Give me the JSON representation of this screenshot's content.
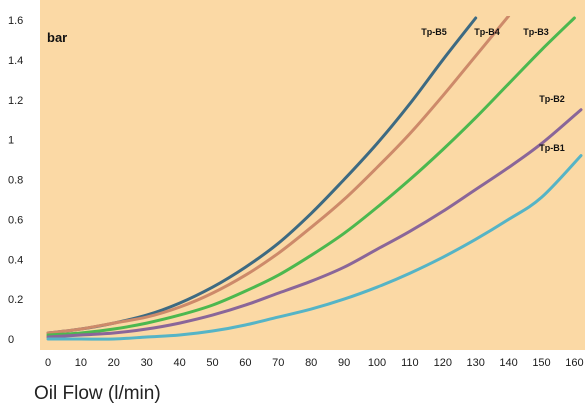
{
  "chart_data": {
    "type": "line",
    "unit_label": "bar",
    "xlabel": "Oil Flow (l/min)",
    "ylabel": "",
    "xlim": [
      0,
      160
    ],
    "ylim": [
      0,
      1.6
    ],
    "xticks": [
      "0",
      "10",
      "20",
      "30",
      "40",
      "50",
      "60",
      "70",
      "80",
      "90",
      "100",
      "110",
      "120",
      "130",
      "140",
      "150",
      "160"
    ],
    "yticks": [
      "0",
      "0.2",
      "0.4",
      "0.6",
      "0.8",
      "1",
      "1.2",
      "1.4",
      "1.6"
    ],
    "background_color": "#fbd9a5",
    "series": [
      {
        "name": "Tp-B5",
        "color": "#3d6a82",
        "x": [
          0,
          10,
          20,
          30,
          40,
          50,
          60,
          70,
          80,
          90,
          100,
          110,
          120,
          130
        ],
        "y": [
          0.03,
          0.05,
          0.08,
          0.12,
          0.18,
          0.26,
          0.36,
          0.48,
          0.63,
          0.8,
          0.98,
          1.18,
          1.4,
          1.61
        ]
      },
      {
        "name": "Tp-B4",
        "color": "#cd8a6a",
        "x": [
          0,
          10,
          20,
          30,
          40,
          50,
          60,
          70,
          80,
          90,
          100,
          110,
          120,
          130,
          140
        ],
        "y": [
          0.03,
          0.05,
          0.08,
          0.11,
          0.16,
          0.23,
          0.32,
          0.43,
          0.56,
          0.7,
          0.86,
          1.03,
          1.22,
          1.42,
          1.62
        ]
      },
      {
        "name": "Tp-B3",
        "color": "#4cb84f",
        "x": [
          0,
          10,
          20,
          30,
          40,
          50,
          60,
          70,
          80,
          90,
          100,
          110,
          120,
          130,
          140,
          150,
          160
        ],
        "y": [
          0.02,
          0.03,
          0.05,
          0.08,
          0.12,
          0.17,
          0.24,
          0.32,
          0.42,
          0.53,
          0.66,
          0.8,
          0.95,
          1.11,
          1.28,
          1.45,
          1.61
        ]
      },
      {
        "name": "Tp-B2",
        "color": "#8a6699",
        "x": [
          0,
          10,
          20,
          30,
          40,
          50,
          60,
          70,
          80,
          90,
          100,
          110,
          120,
          130,
          140,
          150,
          162
        ],
        "y": [
          0.01,
          0.02,
          0.03,
          0.05,
          0.08,
          0.12,
          0.17,
          0.23,
          0.29,
          0.36,
          0.45,
          0.54,
          0.64,
          0.75,
          0.86,
          0.98,
          1.15
        ]
      },
      {
        "name": "Tp-B1",
        "color": "#55b4c6",
        "x": [
          0,
          10,
          20,
          30,
          40,
          50,
          60,
          70,
          80,
          90,
          100,
          110,
          120,
          130,
          140,
          150,
          162
        ],
        "y": [
          0.0,
          0.0,
          0.0,
          0.01,
          0.02,
          0.04,
          0.07,
          0.11,
          0.15,
          0.2,
          0.26,
          0.33,
          0.41,
          0.5,
          0.6,
          0.71,
          0.92
        ]
      }
    ]
  }
}
